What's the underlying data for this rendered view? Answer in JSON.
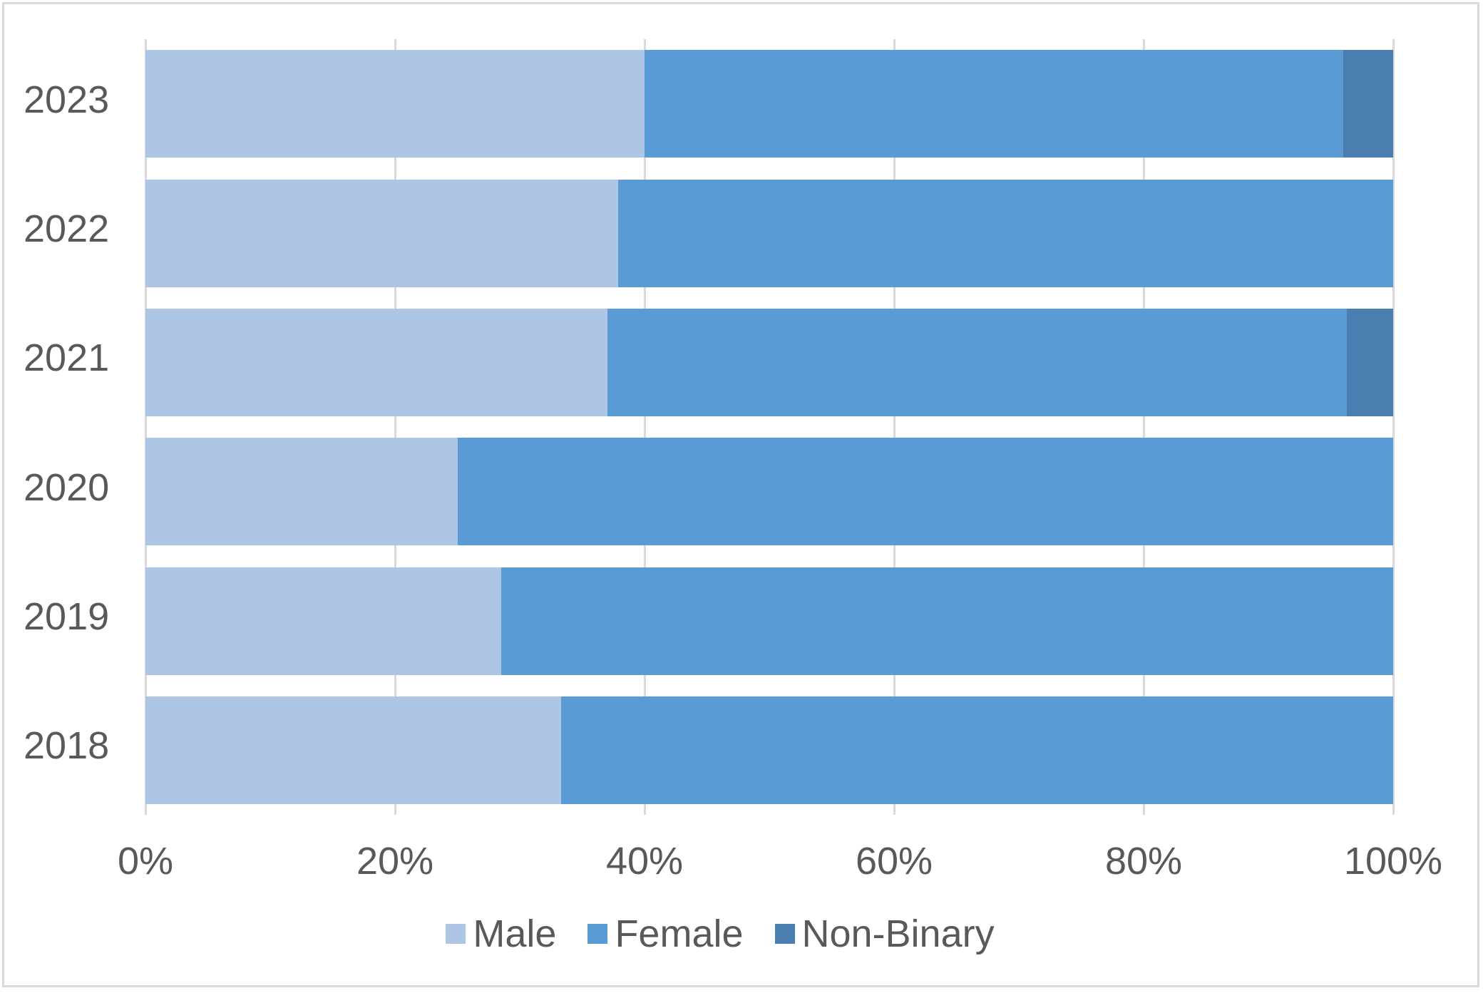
{
  "chart_data": {
    "type": "bar",
    "orientation": "horizontal",
    "stacked": "100%",
    "title": "",
    "xlabel": "",
    "ylabel": "",
    "categories": [
      "2023",
      "2022",
      "2021",
      "2020",
      "2019",
      "2018"
    ],
    "series": [
      {
        "name": "Male",
        "color": "#aec6e5",
        "values": [
          40.0,
          37.9,
          37.0,
          25.0,
          28.5,
          33.3
        ]
      },
      {
        "name": "Female",
        "color": "#5b9bd5",
        "values": [
          56.0,
          62.1,
          59.3,
          75.0,
          71.5,
          66.7
        ]
      },
      {
        "name": "Non-Binary",
        "color": "#4a7eb0",
        "values": [
          4.0,
          0.0,
          3.7,
          0.0,
          0.0,
          0.0
        ]
      }
    ],
    "xlim": [
      0,
      100
    ],
    "x_ticks": [
      "0%",
      "20%",
      "40%",
      "60%",
      "80%",
      "100%"
    ],
    "grid": "vertical",
    "legend_position": "bottom"
  },
  "legend": {
    "items": [
      {
        "label": "Male",
        "color": "#aec6e5"
      },
      {
        "label": "Female",
        "color": "#5b9bd5"
      },
      {
        "label": "Non-Binary",
        "color": "#4a7eb0"
      }
    ]
  }
}
